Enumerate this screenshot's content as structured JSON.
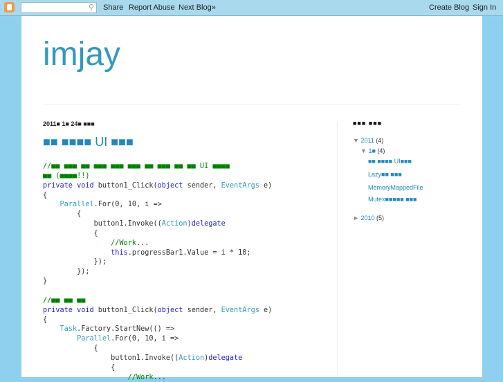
{
  "navbar": {
    "search_icon": "magnifier-icon",
    "share": "Share",
    "report": "Report Abuse",
    "next": "Next Blog»",
    "create": "Create Blog",
    "signin": "Sign In"
  },
  "blog_title": "imjay",
  "post": {
    "date": "2011■ 1■ 24■ ■■■",
    "title": "■■ ■■■■ UI ■■■",
    "code": [
      [
        [
          "c",
          "//■■ ■■■ ■■ ■■■ ■■■ ■■■ ■■ ■■■ ■■ ■■ UI ■■■■"
        ]
      ],
      [
        [
          "c",
          "■■ (■■■■!!)"
        ]
      ],
      [
        [
          "k",
          "private"
        ],
        [
          "p",
          " "
        ],
        [
          "k",
          "void"
        ],
        [
          "p",
          " button1_Click("
        ],
        [
          "k",
          "object"
        ],
        [
          "p",
          " sender, "
        ],
        [
          "t",
          "EventArgs"
        ],
        [
          "p",
          " e)"
        ]
      ],
      [
        [
          "p",
          "{"
        ]
      ],
      [
        [
          "p",
          "    "
        ],
        [
          "t",
          "Parallel"
        ],
        [
          "p",
          ".For(0, 10, i =>"
        ]
      ],
      [
        [
          "p",
          "        {"
        ]
      ],
      [
        [
          "p",
          "            button1.Invoke(("
        ],
        [
          "t",
          "Action"
        ],
        [
          "p",
          ")"
        ],
        [
          "k",
          "delegate"
        ]
      ],
      [
        [
          "p",
          "            {"
        ]
      ],
      [
        [
          "p",
          "                "
        ],
        [
          "c",
          "//Work"
        ],
        [
          "p",
          "..."
        ]
      ],
      [
        [
          "p",
          "                "
        ],
        [
          "k",
          "this"
        ],
        [
          "p",
          ".progressBar1.Value = i * 10;"
        ]
      ],
      [
        [
          "p",
          "            });"
        ]
      ],
      [
        [
          "p",
          "        });"
        ]
      ],
      [
        [
          "p",
          "}"
        ]
      ],
      [
        [
          "p",
          " "
        ]
      ],
      [
        [
          "c",
          "//■■ ■■ ■■"
        ]
      ],
      [
        [
          "k",
          "private"
        ],
        [
          "p",
          " "
        ],
        [
          "k",
          "void"
        ],
        [
          "p",
          " button1_Click("
        ],
        [
          "k",
          "object"
        ],
        [
          "p",
          " sender, "
        ],
        [
          "t",
          "EventArgs"
        ],
        [
          "p",
          " e)"
        ]
      ],
      [
        [
          "p",
          "{"
        ]
      ],
      [
        [
          "p",
          "    "
        ],
        [
          "t",
          "Task"
        ],
        [
          "p",
          ".Factory.StartNew(() =>"
        ]
      ],
      [
        [
          "p",
          "        "
        ],
        [
          "t",
          "Parallel"
        ],
        [
          "p",
          ".For(0, 10, i =>"
        ]
      ],
      [
        [
          "p",
          "            {"
        ]
      ],
      [
        [
          "p",
          "                button1.Invoke(("
        ],
        [
          "t",
          "Action"
        ],
        [
          "p",
          ")"
        ],
        [
          "k",
          "delegate"
        ]
      ],
      [
        [
          "p",
          "                {"
        ]
      ],
      [
        [
          "p",
          "                    "
        ],
        [
          "c",
          "//Work"
        ],
        [
          "p",
          "..."
        ]
      ]
    ]
  },
  "sidebar": {
    "heading": "■■■ ■■■",
    "year2011": {
      "label": "2011",
      "count": "(4)"
    },
    "month": {
      "label": "1■",
      "count": "(4)"
    },
    "posts": [
      "■■ ■■■■ UI■■■",
      "Lazy■■ ■■■",
      "MemoryMappedFile",
      "Mutex■■■■■ ■■■"
    ],
    "year2010": {
      "label": "2010",
      "count": "(5)"
    }
  }
}
